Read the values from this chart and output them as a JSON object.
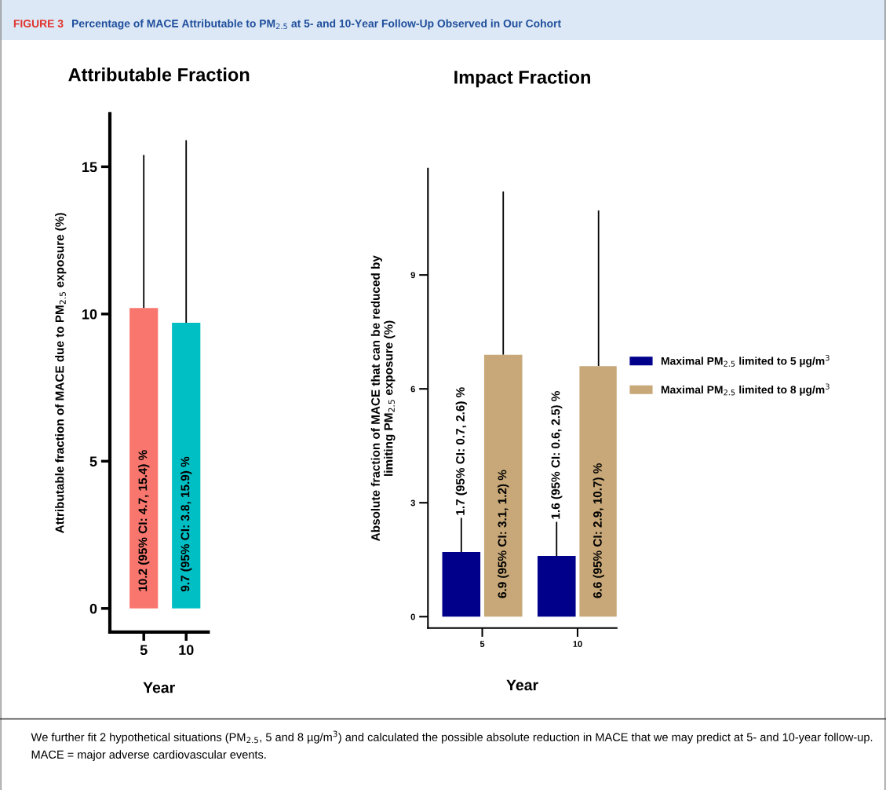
{
  "chart_data": [
    {
      "type": "bar",
      "title": "Attributable Fraction",
      "xlabel": "Year",
      "ylabel": "Attributable fraction of MACE due to PM$_{2.5}$ exposure (%)",
      "categories": [
        "5",
        "10"
      ],
      "values": [
        10.2,
        9.7
      ],
      "colors": [
        "#f8766d",
        "#00bfc4"
      ],
      "errors": [
        [
          10.2,
          15.4
        ],
        [
          9.7,
          15.9
        ]
      ],
      "value_labels": [
        "10.2 (95% CI: 4.7, 15.4) %",
        "9.7 (95% CI: 3.8, 15.9) %"
      ],
      "ylim": [
        -0.8,
        16.8
      ],
      "yticks": [
        0,
        5,
        10,
        15
      ],
      "grid": false,
      "legend": false,
      "annotations": [
        "FIGURE 3",
        "Percentage of MACE Attributable to PM$_{2.5}$ at 5- and 10-Year Follow-Up Observed in Our Cohort",
        "We further fit 2 hypothetical situations (PM$_{2.5}$, 5 and 8 µg/m$^{3}$) and calculated the possible absolute reduction in MACE that we may predict at 5- and 10-year follow-up. MACE = major adverse cardiovascular events."
      ]
    },
    {
      "type": "bar",
      "title": "Impact Fraction",
      "xlabel": "Year",
      "ylabel": "Absolute fraction of MACE that can be reduced by\nlimiting PM$_{2.5}$ exposure (%)",
      "categories": [
        "5",
        "10"
      ],
      "series": [
        {
          "name": "Maximal PM$_{2.5}$ limited to 5 µg/m$^{3}$",
          "color": "#00008b",
          "values": [
            1.7,
            1.6
          ],
          "errors": [
            [
              1.7,
              2.6
            ],
            [
              1.6,
              2.5
            ]
          ],
          "value_labels": [
            "1.7 (95% CI: 0.7, 2.6) %",
            "1.6 (95% CI: 0.6, 2.5) %"
          ]
        },
        {
          "name": "Maximal PM$_{2.5}$ limited to 8 µg/m$^{3}$",
          "color": "#c8a878",
          "values": [
            6.9,
            6.6
          ],
          "errors": [
            [
              6.9,
              11.2
            ],
            [
              6.6,
              10.7
            ]
          ],
          "value_labels": [
            "6.9 (95% CI: 3.1, 1.2) %",
            "6.6 (95% CI: 2.9, 10.7) %"
          ]
        }
      ],
      "ylim": [
        -0.3,
        11.8
      ],
      "yticks": [
        0,
        3,
        6,
        9
      ],
      "grid": false,
      "legend": "right"
    }
  ]
}
